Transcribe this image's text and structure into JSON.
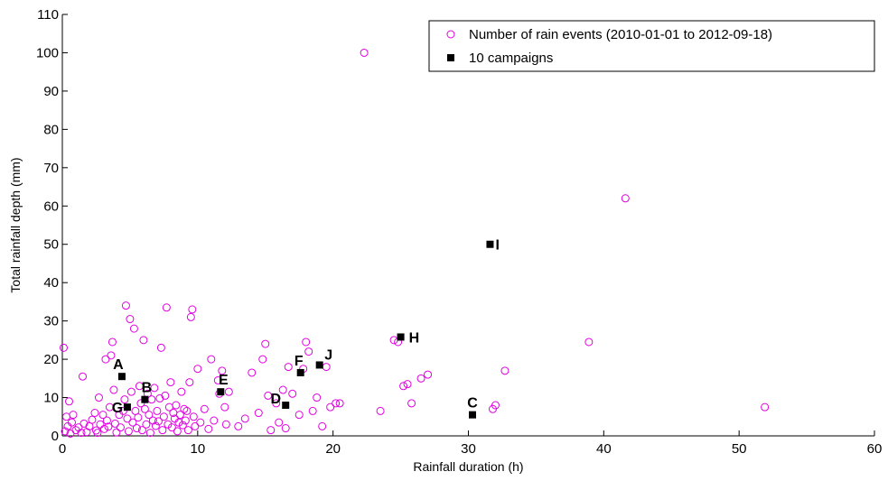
{
  "chart_data": {
    "type": "scatter",
    "xlabel": "Rainfall duration (h)",
    "ylabel": "Total rainfall depth (mm)",
    "xlim": [
      0,
      60
    ],
    "ylim": [
      0,
      110
    ],
    "x_ticks": [
      "0",
      "10",
      "20",
      "30",
      "40",
      "50",
      "60"
    ],
    "y_ticks": [
      "0",
      "10",
      "20",
      "30",
      "40",
      "50",
      "60",
      "70",
      "80",
      "90",
      "100",
      "110"
    ],
    "grid": false,
    "legend_position": "top-right",
    "series": [
      {
        "name": "Number of rain events (2010-01-01 to 2012-09-18)",
        "marker": "circle-open",
        "color": "#e100e1",
        "points": [
          [
            0.1,
            23
          ],
          [
            0.2,
            1.2
          ],
          [
            0.3,
            5
          ],
          [
            0.4,
            2.5
          ],
          [
            0.5,
            9
          ],
          [
            0.6,
            0.6
          ],
          [
            0.7,
            3.5
          ],
          [
            0.8,
            5.5
          ],
          [
            1.0,
            1.5
          ],
          [
            1.2,
            2.2
          ],
          [
            1.4,
            0.8
          ],
          [
            1.5,
            15.5
          ],
          [
            1.6,
            3.2
          ],
          [
            1.8,
            1.0
          ],
          [
            2.0,
            2.5
          ],
          [
            2.2,
            4.2
          ],
          [
            2.4,
            6.0
          ],
          [
            2.5,
            1.4
          ],
          [
            2.6,
            0.8
          ],
          [
            2.7,
            10
          ],
          [
            2.8,
            3.0
          ],
          [
            3.0,
            5.5
          ],
          [
            3.1,
            1.8
          ],
          [
            3.2,
            20
          ],
          [
            3.3,
            4.0
          ],
          [
            3.4,
            2.4
          ],
          [
            3.5,
            7.5
          ],
          [
            3.6,
            21
          ],
          [
            3.7,
            24.5
          ],
          [
            3.8,
            12
          ],
          [
            3.9,
            3.2
          ],
          [
            4.0,
            0.9
          ],
          [
            4.2,
            5.5
          ],
          [
            4.3,
            2.2
          ],
          [
            4.5,
            6.5
          ],
          [
            4.6,
            9.5
          ],
          [
            4.7,
            34
          ],
          [
            4.8,
            4.5
          ],
          [
            4.9,
            1.2
          ],
          [
            5.0,
            30.5
          ],
          [
            5.1,
            11.5
          ],
          [
            5.2,
            3.5
          ],
          [
            5.3,
            28
          ],
          [
            5.4,
            6.5
          ],
          [
            5.5,
            2.0
          ],
          [
            5.6,
            4.8
          ],
          [
            5.7,
            13
          ],
          [
            5.8,
            8.5
          ],
          [
            5.9,
            1.5
          ],
          [
            6.0,
            25
          ],
          [
            6.1,
            7.0
          ],
          [
            6.2,
            3.0
          ],
          [
            6.3,
            11
          ],
          [
            6.4,
            5.5
          ],
          [
            6.5,
            0.8
          ],
          [
            6.6,
            9.5
          ],
          [
            6.7,
            4.0
          ],
          [
            6.8,
            12.5
          ],
          [
            6.9,
            2.6
          ],
          [
            7.0,
            6.5
          ],
          [
            7.1,
            3.8
          ],
          [
            7.2,
            9.8
          ],
          [
            7.3,
            23
          ],
          [
            7.4,
            1.5
          ],
          [
            7.5,
            5.0
          ],
          [
            7.6,
            10.5
          ],
          [
            7.7,
            33.5
          ],
          [
            7.8,
            3.0
          ],
          [
            7.9,
            7.5
          ],
          [
            8.0,
            14
          ],
          [
            8.1,
            2.2
          ],
          [
            8.2,
            6.0
          ],
          [
            8.3,
            4.5
          ],
          [
            8.4,
            8.0
          ],
          [
            8.5,
            1.2
          ],
          [
            8.6,
            3.5
          ],
          [
            8.7,
            5.5
          ],
          [
            8.8,
            11.5
          ],
          [
            8.9,
            2.8
          ],
          [
            9.0,
            7.0
          ],
          [
            9.1,
            4.0
          ],
          [
            9.2,
            6.5
          ],
          [
            9.3,
            1.5
          ],
          [
            9.4,
            14
          ],
          [
            9.5,
            31
          ],
          [
            9.6,
            33
          ],
          [
            9.7,
            5.0
          ],
          [
            9.8,
            2.5
          ],
          [
            10.0,
            17.5
          ],
          [
            10.2,
            3.5
          ],
          [
            10.5,
            7.0
          ],
          [
            10.8,
            1.8
          ],
          [
            11.0,
            20
          ],
          [
            11.2,
            4.0
          ],
          [
            11.5,
            14.5
          ],
          [
            11.6,
            11
          ],
          [
            11.8,
            17
          ],
          [
            12.0,
            7.5
          ],
          [
            12.1,
            3.0
          ],
          [
            12.3,
            11.5
          ],
          [
            13.0,
            2.5
          ],
          [
            13.5,
            4.5
          ],
          [
            14.0,
            16.5
          ],
          [
            14.5,
            6.0
          ],
          [
            14.8,
            20
          ],
          [
            15.0,
            24
          ],
          [
            15.2,
            10.5
          ],
          [
            15.4,
            1.5
          ],
          [
            15.8,
            8.5
          ],
          [
            16.0,
            3.5
          ],
          [
            16.3,
            12
          ],
          [
            16.5,
            2.0
          ],
          [
            16.7,
            18
          ],
          [
            17.0,
            11
          ],
          [
            17.5,
            5.5
          ],
          [
            17.8,
            17.5
          ],
          [
            18.0,
            24.5
          ],
          [
            18.2,
            22
          ],
          [
            18.5,
            6.5
          ],
          [
            18.8,
            10
          ],
          [
            19.2,
            2.5
          ],
          [
            19.5,
            18
          ],
          [
            19.8,
            7.5
          ],
          [
            20.2,
            8.5
          ],
          [
            20.5,
            8.5
          ],
          [
            22.3,
            100
          ],
          [
            23.5,
            6.5
          ],
          [
            24.5,
            25
          ],
          [
            24.8,
            24.5
          ],
          [
            25.2,
            13
          ],
          [
            25.5,
            13.5
          ],
          [
            25.8,
            8.5
          ],
          [
            26.5,
            15
          ],
          [
            27.0,
            16
          ],
          [
            31.8,
            7
          ],
          [
            32.0,
            8
          ],
          [
            32.7,
            17
          ],
          [
            38.9,
            24.5
          ],
          [
            41.6,
            62
          ],
          [
            51.9,
            7.5
          ]
        ]
      },
      {
        "name": "10 campaigns",
        "marker": "square-filled",
        "color": "#000000",
        "points": [
          {
            "label": "A",
            "x": 4.4,
            "y": 15.5
          },
          {
            "label": "B",
            "x": 6.1,
            "y": 9.5
          },
          {
            "label": "C",
            "x": 30.3,
            "y": 5.5
          },
          {
            "label": "D",
            "x": 16.5,
            "y": 8.0
          },
          {
            "label": "E",
            "x": 11.7,
            "y": 11.5
          },
          {
            "label": "F",
            "x": 17.6,
            "y": 16.5
          },
          {
            "label": "G",
            "x": 4.8,
            "y": 7.5
          },
          {
            "label": "H",
            "x": 25.0,
            "y": 25.8
          },
          {
            "label": "I",
            "x": 31.6,
            "y": 50.0
          },
          {
            "label": "J",
            "x": 19.0,
            "y": 18.5
          }
        ]
      }
    ]
  }
}
